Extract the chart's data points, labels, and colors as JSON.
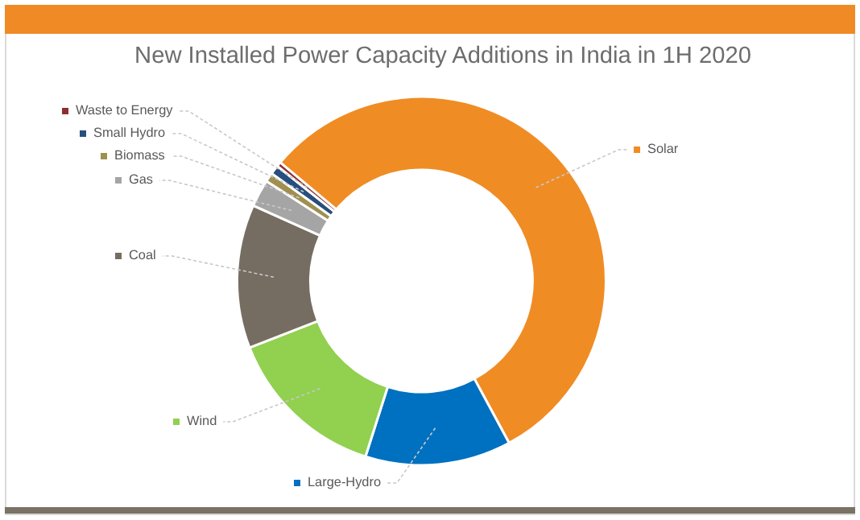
{
  "chart_data": {
    "type": "donut",
    "title": "New Installed Power Capacity Additions in India in 1H 2020",
    "categories": [
      "Solar",
      "Large-Hydro",
      "Wind",
      "Coal",
      "Gas",
      "Biomass",
      "Small Hydro",
      "Waste to Energy"
    ],
    "values": [
      56.0,
      12.8,
      14.2,
      12.6,
      2.4,
      0.8,
      0.8,
      0.4
    ],
    "colors": [
      "#f08c24",
      "#0070c0",
      "#92d050",
      "#766d62",
      "#a5a5a5",
      "#a09050",
      "#264f7e",
      "#8e2f2f"
    ],
    "legend": "left"
  }
}
